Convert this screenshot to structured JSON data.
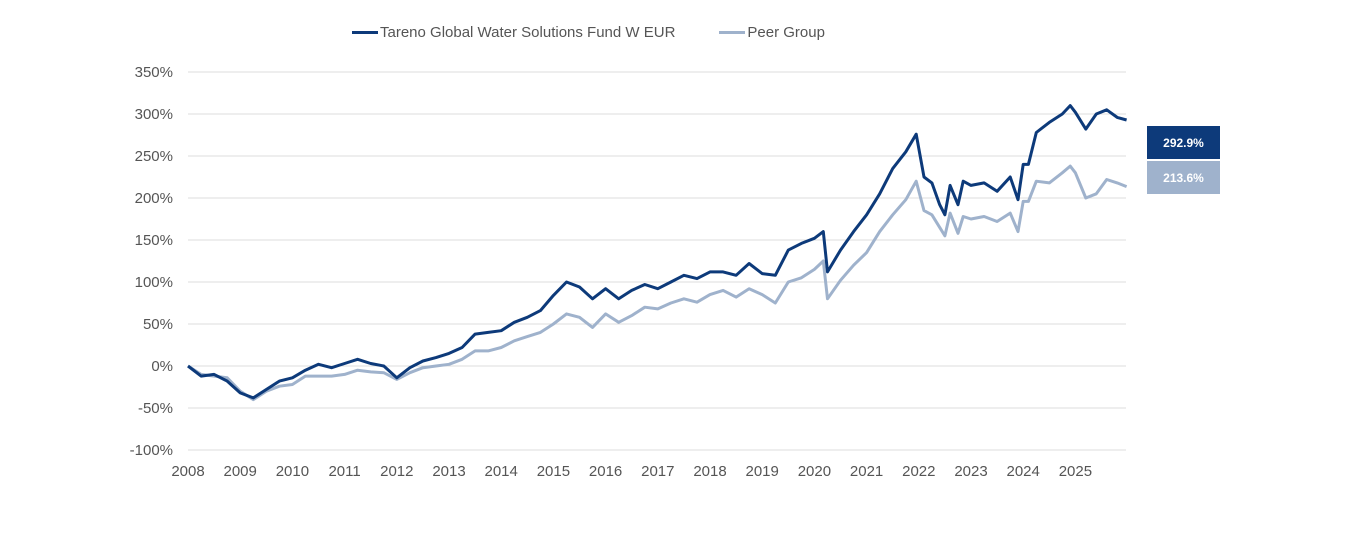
{
  "chart_data": {
    "type": "line",
    "title": "",
    "xlabel": "",
    "ylabel": "",
    "xlim": [
      2008,
      2026
    ],
    "ylim": [
      -100,
      350
    ],
    "yticks": [
      -100,
      -50,
      0,
      50,
      100,
      150,
      200,
      250,
      300,
      350
    ],
    "ytick_labels": [
      "-100%",
      "-50%",
      "0%",
      "50%",
      "100%",
      "150%",
      "200%",
      "250%",
      "300%",
      "350%"
    ],
    "xticks": [
      2008,
      2009,
      2010,
      2011,
      2012,
      2013,
      2014,
      2015,
      2016,
      2017,
      2018,
      2019,
      2020,
      2021,
      2022,
      2023,
      2024,
      2025
    ],
    "xtick_labels": [
      "2008",
      "2009",
      "2010",
      "2011",
      "2012",
      "2013",
      "2014",
      "2015",
      "2016",
      "2017",
      "2018",
      "2019",
      "2020",
      "2021",
      "2022",
      "2023",
      "2024",
      "2025"
    ],
    "grid": true,
    "legend_position": "top-center",
    "x": [
      2008.0,
      2008.25,
      2008.5,
      2008.75,
      2009.0,
      2009.25,
      2009.5,
      2009.75,
      2010.0,
      2010.25,
      2010.5,
      2010.75,
      2011.0,
      2011.25,
      2011.5,
      2011.75,
      2012.0,
      2012.25,
      2012.5,
      2012.75,
      2013.0,
      2013.25,
      2013.5,
      2013.75,
      2014.0,
      2014.25,
      2014.5,
      2014.75,
      2015.0,
      2015.25,
      2015.5,
      2015.75,
      2016.0,
      2016.25,
      2016.5,
      2016.75,
      2017.0,
      2017.25,
      2017.5,
      2017.75,
      2018.0,
      2018.25,
      2018.5,
      2018.75,
      2019.0,
      2019.25,
      2019.5,
      2019.75,
      2020.0,
      2020.17,
      2020.25,
      2020.5,
      2020.75,
      2021.0,
      2021.25,
      2021.5,
      2021.75,
      2021.95,
      2022.1,
      2022.25,
      2022.4,
      2022.5,
      2022.6,
      2022.75,
      2022.85,
      2023.0,
      2023.25,
      2023.5,
      2023.75,
      2023.9,
      2024.0,
      2024.1,
      2024.25,
      2024.5,
      2024.75,
      2024.9,
      2025.0,
      2025.2,
      2025.4,
      2025.6,
      2025.8,
      2025.98
    ],
    "series": [
      {
        "name": "Tareno Global Water Solutions Fund W EUR",
        "color": "#0d3a7a",
        "final_label": "292.9%",
        "values": [
          0,
          -12,
          -10,
          -18,
          -32,
          -38,
          -28,
          -18,
          -14,
          -5,
          2,
          -2,
          3,
          8,
          3,
          0,
          -14,
          -2,
          6,
          10,
          15,
          22,
          38,
          40,
          42,
          52,
          58,
          66,
          84,
          100,
          94,
          80,
          92,
          80,
          90,
          97,
          92,
          100,
          108,
          104,
          112,
          112,
          108,
          122,
          110,
          108,
          138,
          146,
          152,
          160,
          112,
          138,
          160,
          180,
          205,
          235,
          255,
          276,
          225,
          218,
          192,
          180,
          215,
          192,
          220,
          215,
          218,
          208,
          225,
          198,
          240,
          240,
          278,
          290,
          300,
          310,
          302,
          282,
          300,
          305,
          296,
          292.9
        ]
      },
      {
        "name": "Peer Group",
        "color": "#9fb2cc",
        "final_label": "213.6%",
        "values": [
          0,
          -10,
          -12,
          -14,
          -30,
          -40,
          -30,
          -24,
          -22,
          -12,
          -12,
          -12,
          -10,
          -5,
          -7,
          -8,
          -16,
          -8,
          -2,
          0,
          2,
          8,
          18,
          18,
          22,
          30,
          35,
          40,
          50,
          62,
          58,
          46,
          62,
          52,
          60,
          70,
          68,
          75,
          80,
          76,
          85,
          90,
          82,
          92,
          85,
          75,
          100,
          105,
          115,
          125,
          80,
          102,
          120,
          135,
          160,
          180,
          198,
          220,
          185,
          180,
          165,
          155,
          182,
          158,
          178,
          175,
          178,
          172,
          182,
          160,
          196,
          196,
          220,
          218,
          230,
          238,
          230,
          200,
          205,
          222,
          218,
          213.6
        ]
      }
    ]
  },
  "legend": {
    "items": [
      {
        "label": "Tareno Global Water Solutions Fund W EUR",
        "color": "#0d3a7a"
      },
      {
        "label": "Peer Group",
        "color": "#9fb2cc"
      }
    ]
  },
  "badges": [
    {
      "label": "292.9%",
      "color": "#0d3a7a"
    },
    {
      "label": "213.6%",
      "color": "#9fb2cc"
    }
  ]
}
